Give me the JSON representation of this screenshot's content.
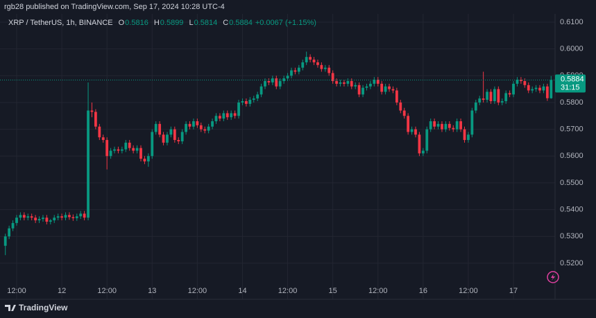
{
  "header": {
    "text": "rgb28 published on TradingView.com, Sep 17, 2024 10:28 UTC-4"
  },
  "chart_data": {
    "type": "candlestick",
    "title": "XRP / TetherUS, 1h, BINANCE",
    "ohlc_legend": [
      {
        "label": "O",
        "value": 0.5816
      },
      {
        "label": "H",
        "value": 0.5899
      },
      {
        "label": "L",
        "value": 0.5814
      },
      {
        "label": "C",
        "value": 0.5884
      }
    ],
    "change": "+0.0067 (+1.15%)",
    "up_color": "#089981",
    "down_color": "#f23645",
    "grid": true,
    "last_price": 0.5884,
    "countdown": "31:15",
    "ylim": [
      0.5135,
      0.6131
    ],
    "yticks": [
      {
        "value": 0.52,
        "label": "0.5200"
      },
      {
        "value": 0.53,
        "label": "0.5300"
      },
      {
        "value": 0.54,
        "label": "0.5400"
      },
      {
        "value": 0.55,
        "label": "0.5500"
      },
      {
        "value": 0.56,
        "label": "0.5600"
      },
      {
        "value": 0.57,
        "label": "0.5700"
      },
      {
        "value": 0.58,
        "label": "0.5800"
      },
      {
        "value": 0.59,
        "label": "0.5900"
      },
      {
        "value": 0.6,
        "label": "0.6000"
      },
      {
        "value": 0.61,
        "label": "0.6100"
      }
    ],
    "categories": [
      null,
      null,
      null,
      "12:00",
      null,
      null,
      null,
      null,
      null,
      null,
      null,
      null,
      null,
      null,
      null,
      "12",
      null,
      null,
      null,
      null,
      null,
      null,
      null,
      null,
      null,
      null,
      null,
      "12:00",
      null,
      null,
      null,
      null,
      null,
      null,
      null,
      null,
      null,
      null,
      null,
      "13",
      null,
      null,
      null,
      null,
      null,
      null,
      null,
      null,
      null,
      null,
      null,
      "12:00",
      null,
      null,
      null,
      null,
      null,
      null,
      null,
      null,
      null,
      null,
      null,
      "14",
      null,
      null,
      null,
      null,
      null,
      null,
      null,
      null,
      null,
      null,
      null,
      "12:00",
      null,
      null,
      null,
      null,
      null,
      null,
      null,
      null,
      null,
      null,
      null,
      "15",
      null,
      null,
      null,
      null,
      null,
      null,
      null,
      null,
      null,
      null,
      null,
      "12:00",
      null,
      null,
      null,
      null,
      null,
      null,
      null,
      null,
      null,
      null,
      null,
      "16",
      null,
      null,
      null,
      null,
      null,
      null,
      null,
      null,
      null,
      null,
      null,
      "12:00",
      null,
      null,
      null,
      null,
      null,
      null,
      null,
      null,
      null,
      null,
      null,
      "17",
      null,
      null,
      null,
      null,
      null,
      null,
      null,
      null,
      null,
      null
    ],
    "series": {
      "open": [
        0.5265,
        0.53,
        0.533,
        0.535,
        0.537,
        0.538,
        0.537,
        0.5375,
        0.537,
        0.536,
        0.5365,
        0.537,
        0.5355,
        0.536,
        0.537,
        0.5375,
        0.537,
        0.538,
        0.5372,
        0.5368,
        0.5375,
        0.5385,
        0.537,
        0.577,
        0.5765,
        0.571,
        0.567,
        0.566,
        0.56,
        0.562,
        0.5625,
        0.562,
        0.5625,
        0.565,
        0.563,
        0.562,
        0.563,
        0.559,
        0.558,
        0.56,
        0.569,
        0.572,
        0.568,
        0.565,
        0.568,
        0.57,
        0.566,
        0.5655,
        0.569,
        0.572,
        0.571,
        0.573,
        0.5715,
        0.57,
        0.5695,
        0.571,
        0.573,
        0.575,
        0.574,
        0.576,
        0.5745,
        0.576,
        0.575,
        0.58,
        0.5805,
        0.5795,
        0.581,
        0.5815,
        0.583,
        0.586,
        0.588,
        0.5875,
        0.589,
        0.586,
        0.588,
        0.589,
        0.59,
        0.592,
        0.5915,
        0.593,
        0.595,
        0.597,
        0.596,
        0.595,
        0.594,
        0.5925,
        0.593,
        0.591,
        0.588,
        0.587,
        0.5875,
        0.587,
        0.588,
        0.586,
        0.5865,
        0.583,
        0.5855,
        0.586,
        0.587,
        0.5885,
        0.587,
        0.584,
        0.586,
        0.585,
        0.5845,
        0.58,
        0.577,
        0.575,
        0.569,
        0.57,
        0.568,
        0.561,
        0.562,
        0.57,
        0.573,
        0.571,
        0.572,
        0.57,
        0.572,
        0.5705,
        0.57,
        0.573,
        0.57,
        0.566,
        0.568,
        0.577,
        0.58,
        0.5815,
        0.581,
        0.584,
        0.5805,
        0.585,
        0.58,
        0.5805,
        0.5835,
        0.583,
        0.587,
        0.5885,
        0.588,
        0.5865,
        0.5845,
        0.585,
        0.5855,
        0.5845,
        0.586,
        0.5816
      ],
      "high": [
        0.531,
        0.534,
        0.536,
        0.538,
        0.539,
        0.539,
        0.5385,
        0.5385,
        0.538,
        0.5375,
        0.538,
        0.538,
        0.5365,
        0.538,
        0.5385,
        0.5385,
        0.539,
        0.539,
        0.5382,
        0.5385,
        0.5395,
        0.5395,
        0.5875,
        0.58,
        0.5775,
        0.572,
        0.568,
        0.567,
        0.563,
        0.5635,
        0.5635,
        0.5635,
        0.566,
        0.566,
        0.564,
        0.564,
        0.564,
        0.56,
        0.561,
        0.57,
        0.573,
        0.573,
        0.569,
        0.569,
        0.571,
        0.571,
        0.567,
        0.57,
        0.573,
        0.573,
        0.574,
        0.574,
        0.5725,
        0.571,
        0.572,
        0.574,
        0.576,
        0.576,
        0.577,
        0.577,
        0.577,
        0.577,
        0.581,
        0.5815,
        0.5815,
        0.582,
        0.5825,
        0.584,
        0.587,
        0.589,
        0.589,
        0.59,
        0.59,
        0.589,
        0.59,
        0.591,
        0.593,
        0.593,
        0.594,
        0.596,
        0.599,
        0.598,
        0.597,
        0.596,
        0.595,
        0.594,
        0.594,
        0.592,
        0.589,
        0.5885,
        0.5885,
        0.589,
        0.589,
        0.5875,
        0.5875,
        0.5865,
        0.587,
        0.588,
        0.5895,
        0.5895,
        0.588,
        0.587,
        0.587,
        0.586,
        0.5855,
        0.581,
        0.578,
        0.576,
        0.571,
        0.571,
        0.569,
        0.563,
        0.571,
        0.574,
        0.574,
        0.573,
        0.573,
        0.573,
        0.573,
        0.5715,
        0.574,
        0.574,
        0.571,
        0.569,
        0.578,
        0.581,
        0.5825,
        0.5915,
        0.585,
        0.585,
        0.586,
        0.586,
        0.5815,
        0.5845,
        0.5845,
        0.588,
        0.5895,
        0.5895,
        0.589,
        0.5875,
        0.586,
        0.5865,
        0.5865,
        0.587,
        0.587,
        0.5899
      ],
      "low": [
        0.523,
        0.529,
        0.532,
        0.534,
        0.536,
        0.536,
        0.536,
        0.536,
        0.535,
        0.535,
        0.5355,
        0.5345,
        0.5345,
        0.535,
        0.536,
        0.536,
        0.536,
        0.5362,
        0.5358,
        0.5358,
        0.5365,
        0.536,
        0.536,
        0.5745,
        0.57,
        0.566,
        0.565,
        0.555,
        0.559,
        0.561,
        0.561,
        0.561,
        0.5615,
        0.562,
        0.561,
        0.561,
        0.558,
        0.557,
        0.556,
        0.559,
        0.568,
        0.567,
        0.564,
        0.564,
        0.567,
        0.565,
        0.5645,
        0.5645,
        0.568,
        0.57,
        0.57,
        0.5705,
        0.569,
        0.5685,
        0.5685,
        0.57,
        0.572,
        0.573,
        0.573,
        0.5735,
        0.5735,
        0.574,
        0.574,
        0.579,
        0.5785,
        0.5785,
        0.58,
        0.5805,
        0.582,
        0.585,
        0.5865,
        0.5865,
        0.585,
        0.585,
        0.587,
        0.588,
        0.589,
        0.5905,
        0.5905,
        0.592,
        0.594,
        0.595,
        0.594,
        0.593,
        0.5915,
        0.5915,
        0.59,
        0.587,
        0.586,
        0.586,
        0.586,
        0.586,
        0.585,
        0.585,
        0.582,
        0.582,
        0.5845,
        0.585,
        0.586,
        0.586,
        0.583,
        0.583,
        0.584,
        0.5835,
        0.579,
        0.576,
        0.574,
        0.568,
        0.568,
        0.567,
        0.56,
        0.56,
        0.561,
        0.569,
        0.57,
        0.57,
        0.569,
        0.569,
        0.5695,
        0.569,
        0.569,
        0.569,
        0.565,
        0.565,
        0.567,
        0.576,
        0.579,
        0.58,
        0.58,
        0.5795,
        0.5795,
        0.579,
        0.579,
        0.5795,
        0.582,
        0.582,
        0.586,
        0.587,
        0.5855,
        0.5835,
        0.5835,
        0.584,
        0.5835,
        0.5835,
        0.5806,
        0.5814
      ],
      "close": [
        0.53,
        0.533,
        0.535,
        0.537,
        0.538,
        0.537,
        0.5375,
        0.537,
        0.536,
        0.5365,
        0.537,
        0.5355,
        0.536,
        0.537,
        0.5375,
        0.537,
        0.538,
        0.5372,
        0.5368,
        0.5375,
        0.5385,
        0.537,
        0.577,
        0.5765,
        0.571,
        0.567,
        0.566,
        0.56,
        0.562,
        0.5625,
        0.562,
        0.5625,
        0.565,
        0.563,
        0.562,
        0.563,
        0.559,
        0.558,
        0.56,
        0.569,
        0.572,
        0.568,
        0.565,
        0.568,
        0.57,
        0.566,
        0.5655,
        0.569,
        0.572,
        0.571,
        0.573,
        0.5715,
        0.57,
        0.5695,
        0.571,
        0.573,
        0.575,
        0.574,
        0.576,
        0.5745,
        0.576,
        0.575,
        0.58,
        0.5805,
        0.5795,
        0.581,
        0.5815,
        0.583,
        0.586,
        0.588,
        0.5875,
        0.589,
        0.586,
        0.588,
        0.589,
        0.59,
        0.592,
        0.5915,
        0.593,
        0.595,
        0.597,
        0.596,
        0.595,
        0.594,
        0.5925,
        0.593,
        0.591,
        0.588,
        0.587,
        0.5875,
        0.587,
        0.588,
        0.586,
        0.5865,
        0.583,
        0.5855,
        0.586,
        0.587,
        0.5885,
        0.587,
        0.584,
        0.586,
        0.585,
        0.5845,
        0.58,
        0.577,
        0.575,
        0.569,
        0.57,
        0.568,
        0.561,
        0.562,
        0.57,
        0.573,
        0.571,
        0.572,
        0.57,
        0.572,
        0.5705,
        0.57,
        0.573,
        0.57,
        0.566,
        0.568,
        0.577,
        0.58,
        0.5815,
        0.581,
        0.584,
        0.5805,
        0.585,
        0.58,
        0.5805,
        0.5835,
        0.583,
        0.587,
        0.5885,
        0.588,
        0.5865,
        0.5845,
        0.585,
        0.5855,
        0.5845,
        0.586,
        0.5816,
        0.5884
      ]
    }
  },
  "footer": {
    "brand": "TradingView"
  }
}
